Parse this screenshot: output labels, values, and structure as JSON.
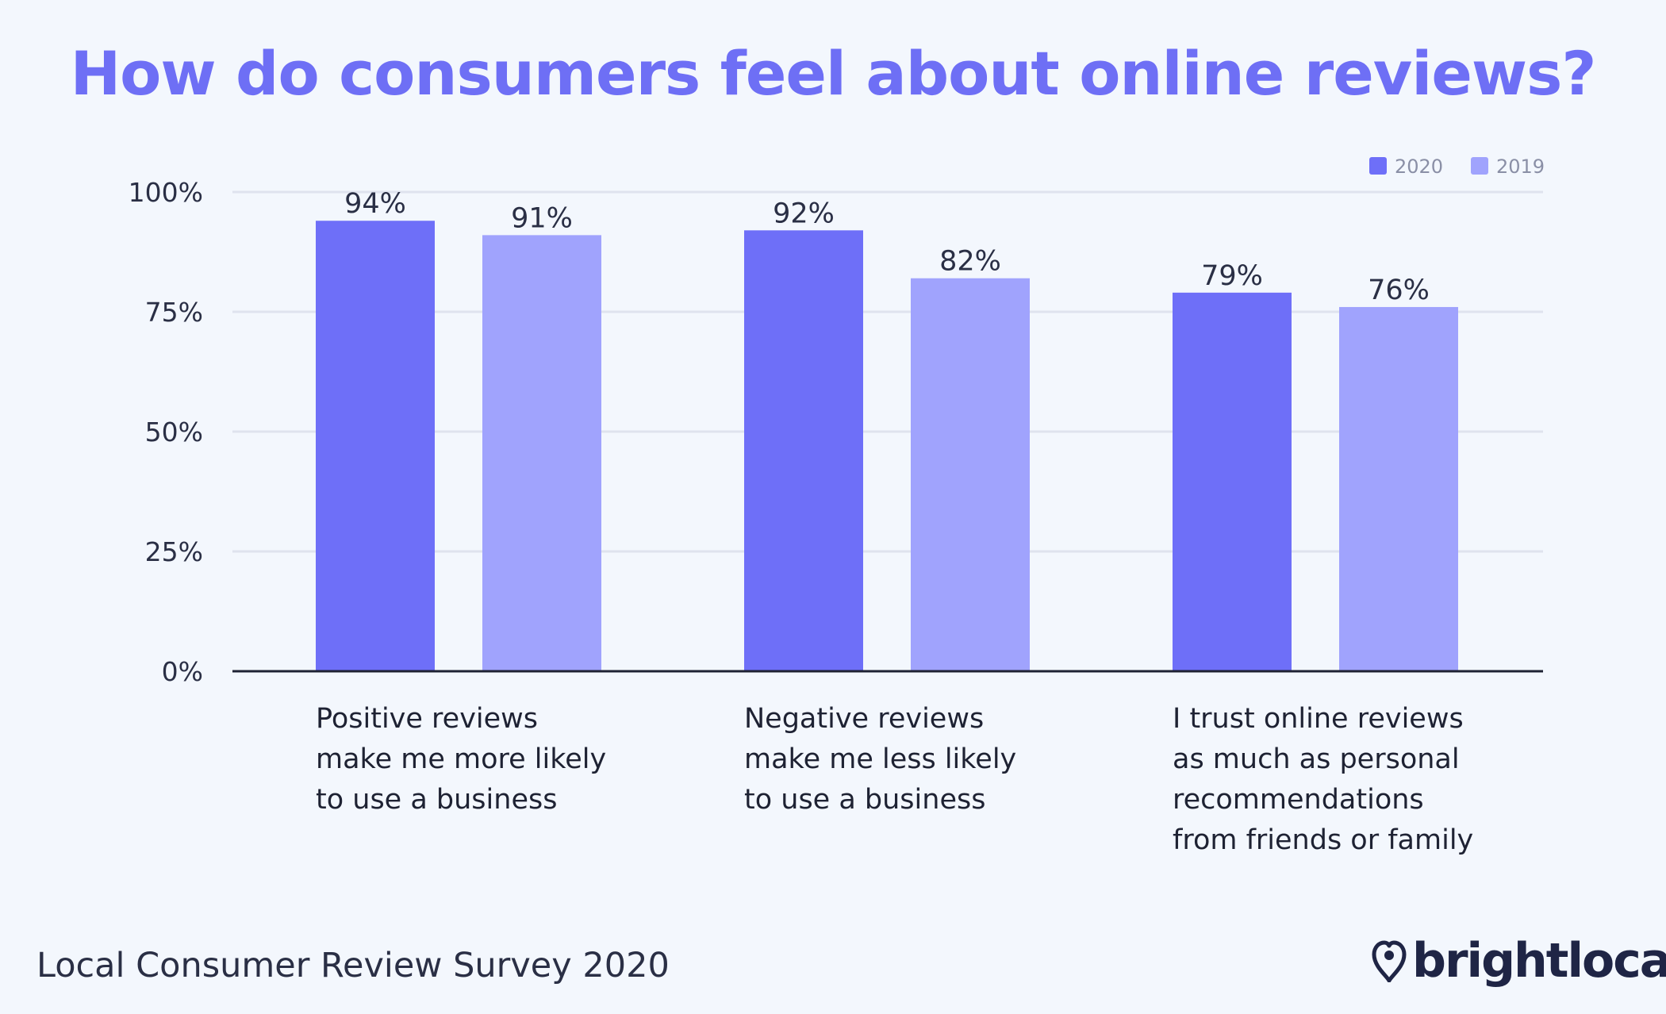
{
  "title": "How do consumers feel about online reviews?",
  "footer": "Local Consumer Review Survey 2020",
  "brand": {
    "name": "brightlocal",
    "icon": "heart-pin-icon"
  },
  "colors": {
    "title": "#6e6ff5",
    "series_2020": "#6e6ff8",
    "series_2019": "#a0a3fd",
    "text": "#2a2f45",
    "grid": "#dfe3ee"
  },
  "chart_data": {
    "type": "bar",
    "title": "How do consumers feel about online reviews?",
    "categories": [
      [
        "Positive reviews",
        "make me more likely",
        "to use a business"
      ],
      [
        "Negative reviews",
        "make me less likely",
        "to use a business"
      ],
      [
        "I trust online reviews",
        "as much as personal",
        "recommendations",
        "from friends or family"
      ]
    ],
    "series": [
      {
        "name": "2020",
        "values": [
          94,
          92,
          79
        ],
        "labels": [
          "94%",
          "92%",
          "79%"
        ]
      },
      {
        "name": "2019",
        "values": [
          91,
          82,
          76
        ],
        "labels": [
          "91%",
          "82%",
          "76%"
        ]
      }
    ],
    "yticks": [
      "0%",
      "25%",
      "50%",
      "75%",
      "100%"
    ],
    "ylim": [
      0,
      100
    ],
    "grid": true,
    "legend": "top-right"
  }
}
